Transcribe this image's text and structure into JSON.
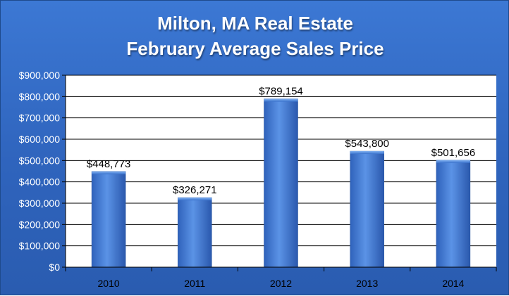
{
  "chart_data": {
    "type": "bar",
    "title": "Milton, MA Real Estate",
    "subtitle": "February Average Sales Price",
    "categories": [
      "2010",
      "2011",
      "2012",
      "2013",
      "2014"
    ],
    "values": [
      448773,
      326271,
      789154,
      543800,
      501656
    ],
    "value_labels": [
      "$448,773",
      "$326,271",
      "$789,154",
      "$543,800",
      "$501,656"
    ],
    "ylim": [
      0,
      900000
    ],
    "yticks": [
      "$0",
      "$100,000",
      "$200,000",
      "$300,000",
      "$400,000",
      "$500,000",
      "$600,000",
      "$700,000",
      "$800,000",
      "$900,000"
    ],
    "grid": true,
    "legend": "none",
    "colors": {
      "background": "#2f64bd",
      "plot_area": "#ffffff",
      "bar_light": "#4f88e0",
      "bar_dark": "#2d5fb8"
    }
  }
}
